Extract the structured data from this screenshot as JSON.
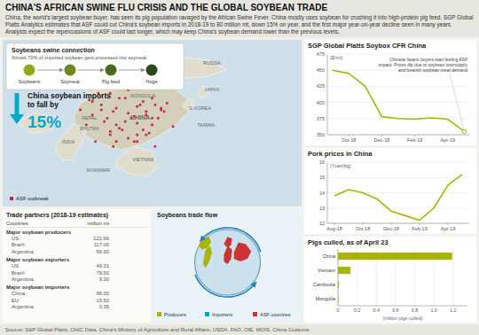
{
  "title": "CHINA'S AFRICAN SWINE FLU CRISIS AND THE GLOBAL SOYBEAN TRADE",
  "subtitle": "China, the world's largest soybean buyer, has seen its pig population ravaged by the African Swine Fever. China mostly uses soybean for crushing it into high-protein pig feed. SGP Global Platts Analytics estimates that ASF could cut China's soybean imports in 2018-19 to 80 million mt, down 15% on year, and the first major year-on-year decline seen in many years. Analysts expect the repercussions of ASF could last longer, which may keep China's soybean demand lower than the previous levels.",
  "source": "Source: S&P Global Platts, CHIC Data, China's Ministry of Agriculture and Rural Affairs, USDA, FAO, OIE, MOIS, China Customs",
  "chart_data": [
    {
      "type": "line",
      "title": "SGP Global Platts Soybox CFR China",
      "ylabel": "($/mt)",
      "x": [
        0,
        1,
        2,
        3,
        4,
        5,
        6,
        7,
        8
      ],
      "values": [
        450,
        445,
        425,
        378,
        375,
        374,
        376,
        374,
        355
      ],
      "color": "#a8b400",
      "xlim": [
        -0.3,
        8.3
      ],
      "xticks": [
        {
          "value": 1,
          "label": "Oct-18"
        },
        {
          "value": 3,
          "label": "Dec-18"
        },
        {
          "value": 5,
          "label": "Feb-19"
        },
        {
          "value": 7,
          "label": "Apr-19"
        }
      ],
      "ylim": [
        350,
        475
      ],
      "yticks": [
        350,
        375,
        400,
        425,
        450,
        475
      ],
      "grid": true,
      "annotation": "Chinese beans buyers start feeling ASF\nimpact: Prices dip due to soybean oversupply\nand bearish soybean meal demand"
    },
    {
      "type": "line",
      "title": "Pork prices in China",
      "ylabel": "(Yuan/kg)",
      "x": [
        0,
        1,
        2,
        3,
        4,
        5,
        6,
        7,
        8,
        9
      ],
      "values": [
        13.8,
        14.2,
        14.0,
        13.6,
        12.8,
        12.5,
        12.2,
        13.0,
        14.5,
        15.2
      ],
      "color": "#a8b400",
      "xlim": [
        -0.5,
        9.5
      ],
      "xticks": [
        {
          "value": 0,
          "label": "Aug-18"
        },
        {
          "value": 2,
          "label": "Oct-18"
        },
        {
          "value": 4,
          "label": "Dec-18"
        },
        {
          "value": 6,
          "label": "Feb-19"
        },
        {
          "value": 8,
          "label": "Apr-19"
        }
      ],
      "ylim": [
        12,
        16
      ],
      "yticks": [
        12,
        13,
        14,
        15,
        16
      ],
      "grid": true
    },
    {
      "type": "bar",
      "orientation": "horizontal",
      "title": "Pigs culled, as of April 23",
      "xlabel": "(million pigs culled)",
      "categories": [
        "China",
        "Vietnam",
        "Cambodia",
        "Mongolia"
      ],
      "values": [
        1.19,
        0.13,
        0.01,
        0.005
      ],
      "color": "#a8b400",
      "xlim": [
        0,
        1.35
      ],
      "xticks": [
        0,
        0.2,
        0.4,
        0.6,
        0.8,
        {
          "value": 1.0,
          "label": "1.0"
        },
        1.2
      ],
      "grid": true
    },
    {
      "type": "table",
      "title": "Trade partners (2018-19 estimates)",
      "columns": [
        "Countries",
        "million mt"
      ],
      "sections": [
        {
          "header": "Major soybean producers",
          "categories": [
            "US",
            "Brazil",
            "Argentina"
          ],
          "values": [
            121.66,
            117.0,
            56.0
          ],
          "value_labels": [
            "121.66",
            "117.00",
            "56.00"
          ]
        },
        {
          "header": "Major soybean exporters",
          "categories": [
            "US",
            "Brazil",
            "Argentina"
          ],
          "values": [
            49.31,
            79.5,
            9.3
          ],
          "value_labels": [
            "49.31",
            "79.50",
            "9.30"
          ]
        },
        {
          "header": "Major soybean importers",
          "categories": [
            "China",
            "EU",
            "Argentina"
          ],
          "values": [
            96.0,
            15.5,
            0.35
          ],
          "value_labels": [
            "96.00",
            "15.50",
            "0.35"
          ]
        }
      ]
    },
    {
      "type": "map",
      "series": [
        {
          "name": "ASF outbreak",
          "color": "#cc2244"
        }
      ],
      "annotations": [
        "RUSSIA",
        "MONGOLIA",
        "CHINA",
        "JAPAN",
        "S. KOREA",
        "INDIA",
        "VIETNAM",
        "TAIWAN",
        "NEPAL",
        "BHUTAN",
        "MYANMAR"
      ]
    },
    {
      "type": "flow",
      "title": "Soybeans swine connection",
      "subtitle": "Almost 70% of imported soybean gets processed into soymeal",
      "categories": [
        "Soybeans",
        "Soymeal",
        "Pig feed",
        "Hogs"
      ],
      "colors": [
        "#8faa1c",
        "#6a8a1c",
        "#4a6a1c",
        "#2a4a1c"
      ]
    },
    {
      "type": "callout",
      "title": "China soybean imports\nto fall by",
      "values": [
        15
      ],
      "value_labels": [
        "15%"
      ],
      "color": "#00aacc"
    },
    {
      "type": "diagram",
      "title": "Soybeans trade flow",
      "series": [
        {
          "name": "Producers",
          "color": "#a8b400"
        },
        {
          "name": "Importers",
          "color": "#00aacc"
        },
        {
          "name": "ASF countries",
          "color": "#cc3333"
        }
      ]
    }
  ]
}
